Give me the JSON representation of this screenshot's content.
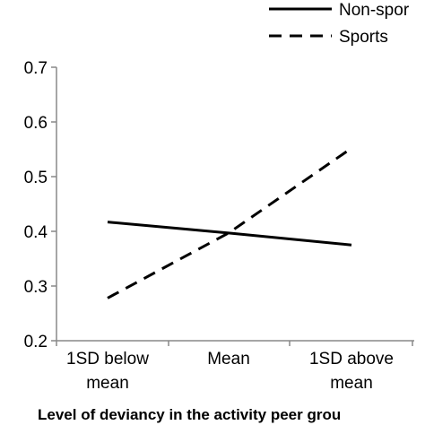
{
  "chart_data": {
    "type": "line",
    "title": "",
    "xlabel": "Level of deviancy in the activity peer grou",
    "ylabel": "",
    "categories": [
      [
        "1SD below",
        "mean"
      ],
      [
        "Mean"
      ],
      [
        "1SD above",
        "mean"
      ]
    ],
    "ylim": [
      0.2,
      0.7
    ],
    "yticks": [
      0.2,
      0.3,
      0.4,
      0.5,
      0.6,
      0.7
    ],
    "ytick_labels": [
      "0.2",
      "0.3",
      "0.4",
      "0.5",
      "0.6",
      "0.7"
    ],
    "grid": false,
    "legend": "top-right",
    "series": [
      {
        "name": "Non-spor",
        "style": "solid",
        "color": "#000000",
        "values": [
          0.417,
          0.397,
          0.375
        ]
      },
      {
        "name": "Sports",
        "style": "dashed",
        "color": "#000000",
        "values": [
          0.278,
          0.397,
          0.552
        ]
      }
    ]
  }
}
